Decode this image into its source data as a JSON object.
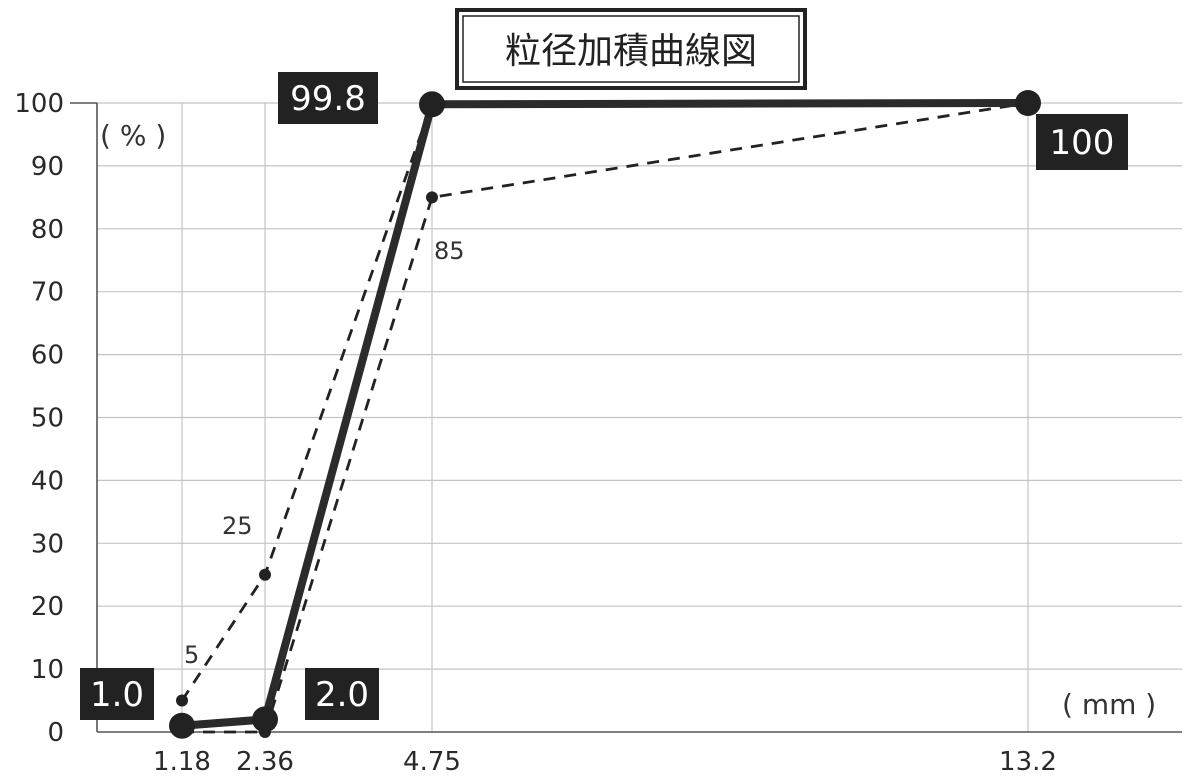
{
  "chart_data": {
    "type": "line",
    "title": "粒径加積曲線図",
    "y_unit": "( % )",
    "x_unit": "( mm )",
    "x": [
      1.18,
      2.36,
      4.75,
      13.2
    ],
    "x_tick_labels": [
      "1.18",
      "2.36",
      "4.75",
      "13.2"
    ],
    "y_ticks": [
      0,
      10,
      20,
      30,
      40,
      50,
      60,
      70,
      80,
      90,
      100
    ],
    "ylim": [
      0,
      100
    ],
    "grid": true,
    "series": [
      {
        "role": "measured",
        "values": [
          1.0,
          2.0,
          99.8,
          100
        ],
        "labels": [
          "1.0",
          "2.0",
          "99.8",
          "100"
        ]
      },
      {
        "role": "upper-limit",
        "values": [
          5,
          25,
          100,
          100
        ],
        "labels": [
          "5",
          "25",
          "",
          ""
        ]
      },
      {
        "role": "lower-limit",
        "values": [
          0,
          0,
          85,
          100
        ],
        "labels": [
          "",
          "",
          "85",
          ""
        ]
      }
    ]
  }
}
